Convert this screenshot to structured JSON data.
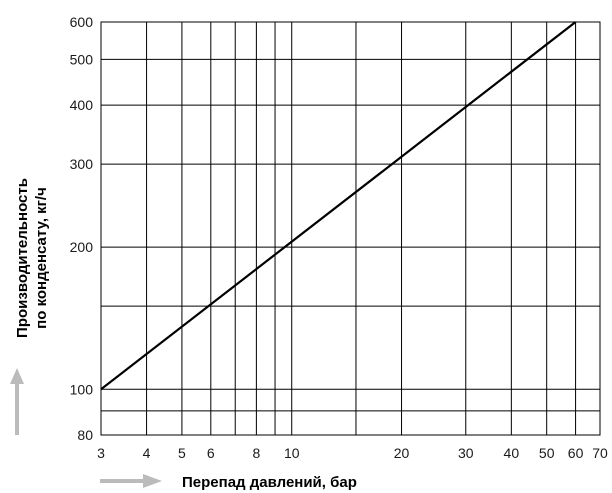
{
  "chart_data": {
    "type": "line",
    "title": "",
    "xlabel": "Перепад давлений, бар",
    "ylabel_line1": "Производительность",
    "ylabel_line2": "по конденсату, кг/ч",
    "x_scale": "log",
    "y_scale": "log",
    "xlim": [
      3,
      70
    ],
    "ylim": [
      80,
      600
    ],
    "x_ticks": [
      3,
      4,
      5,
      6,
      8,
      10,
      20,
      30,
      40,
      50,
      60,
      70
    ],
    "y_ticks": [
      80,
      100,
      200,
      300,
      400,
      500,
      600
    ],
    "x_gridlines": [
      4,
      5,
      6,
      7,
      8,
      9,
      10,
      15,
      20,
      30,
      40,
      50,
      60
    ],
    "y_gridlines": [
      90,
      100,
      150,
      200,
      300,
      400,
      500,
      600
    ],
    "grid": true,
    "series": [
      {
        "x": [
          3,
          60
        ],
        "y": [
          100,
          600
        ]
      }
    ],
    "colors": {
      "line": "#000000",
      "grid": "#000000",
      "arrow": "#bbbbbb"
    }
  }
}
